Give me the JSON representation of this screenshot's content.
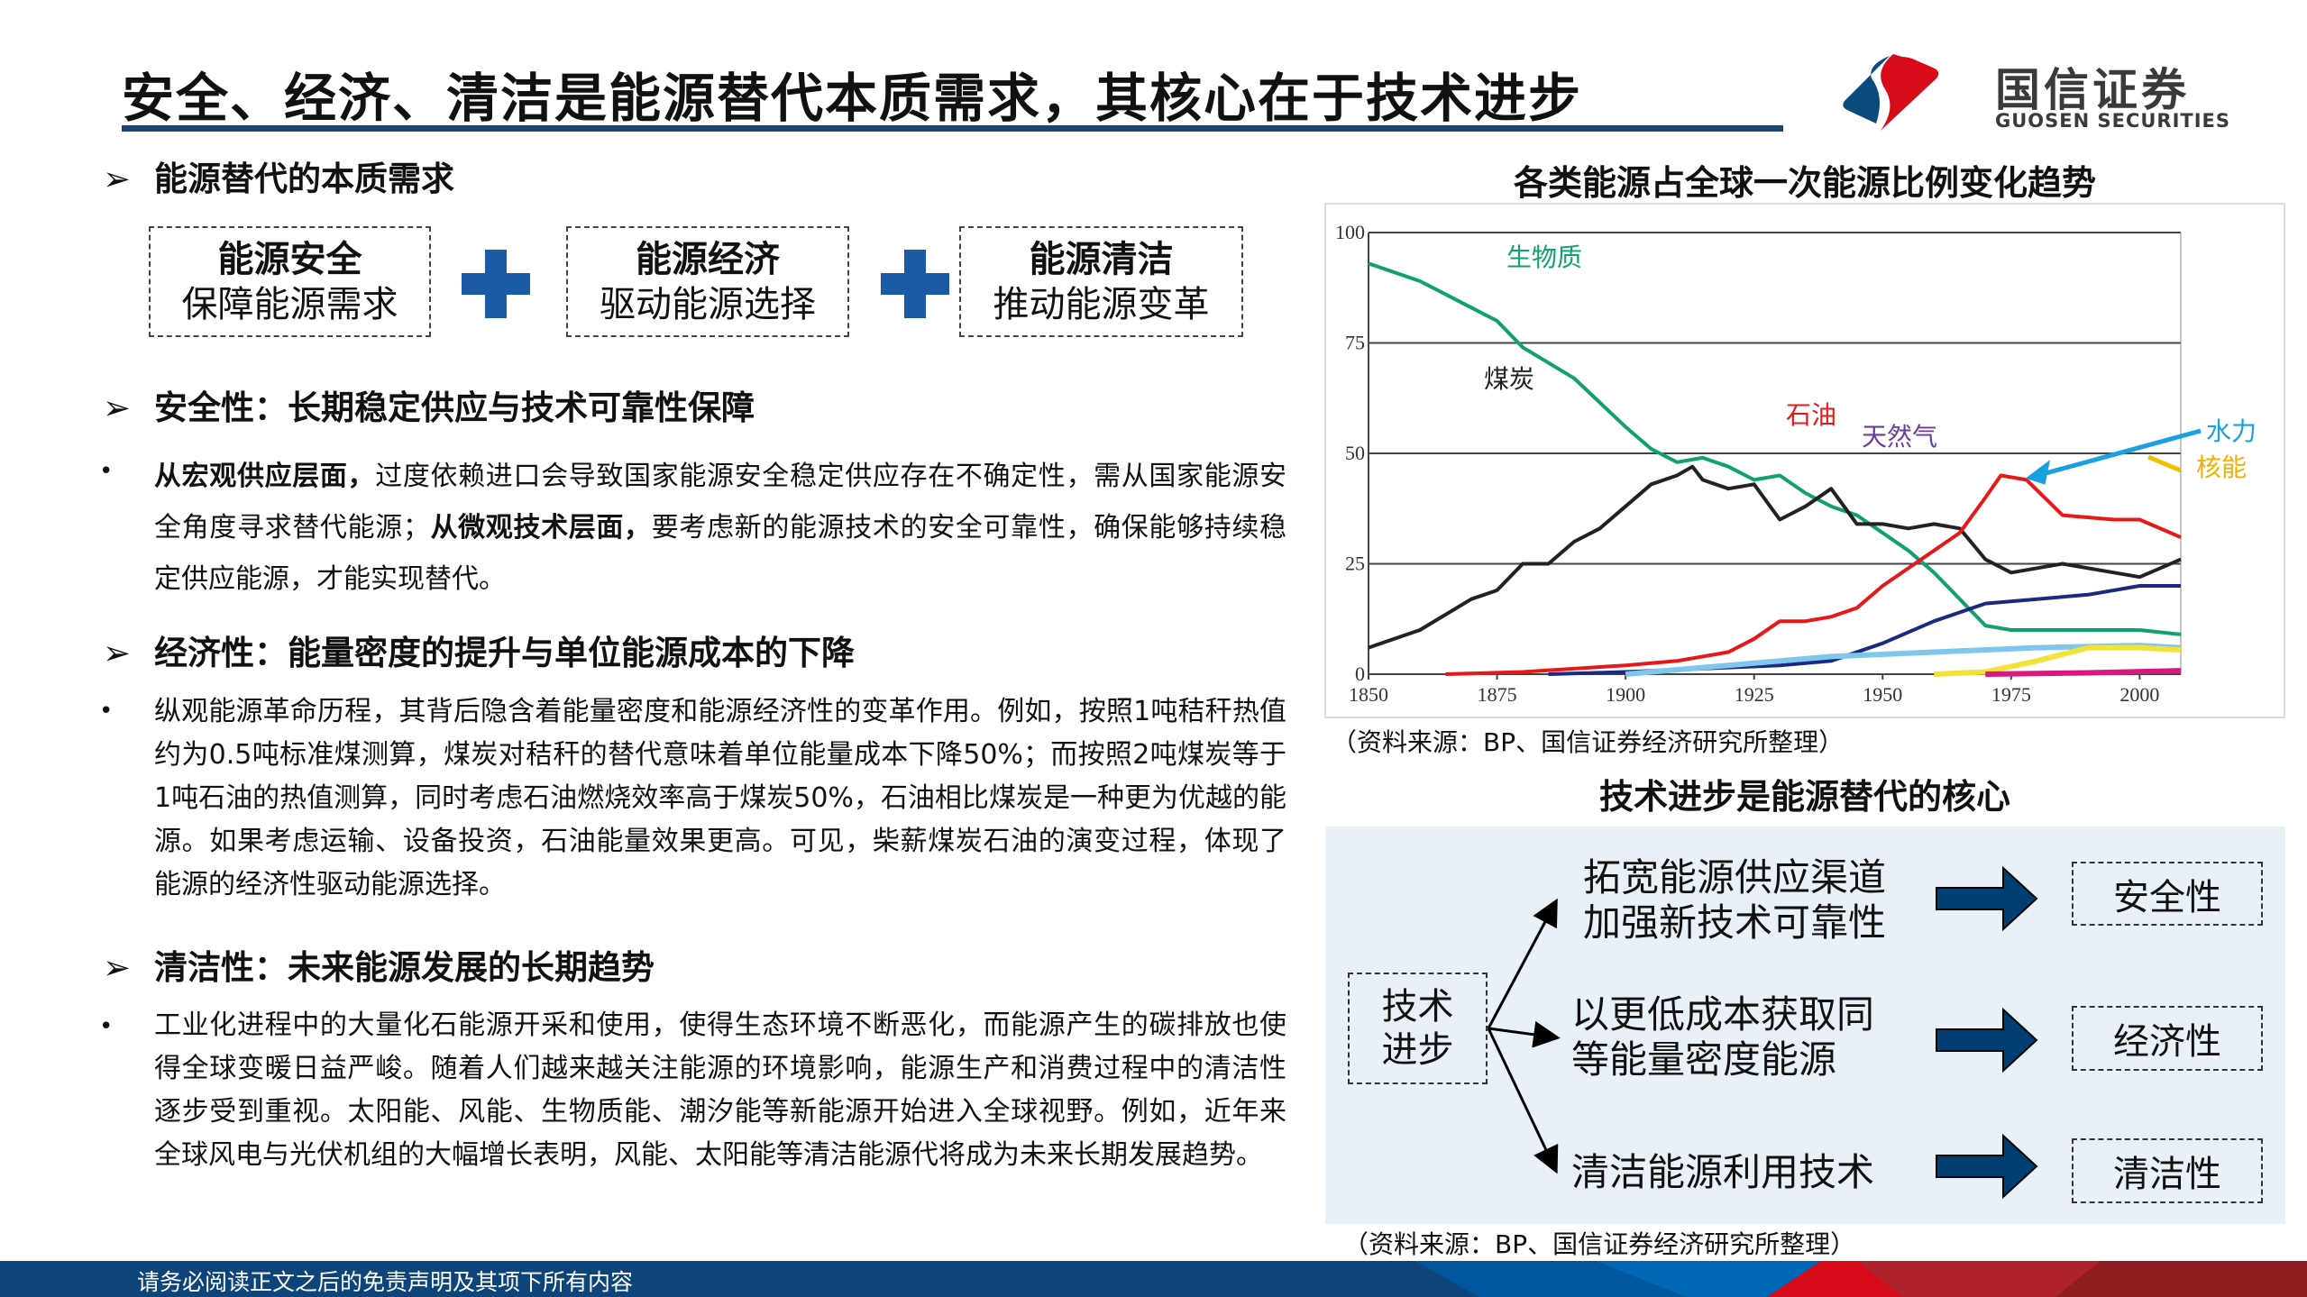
{
  "title": "安全、经济、清洁是能源替代本质需求，其核心在于技术进步",
  "logo": {
    "cn": "国信证券",
    "en": "GUOSEN SECURITIES",
    "colors": {
      "blue": "#0b4a7c",
      "red": "#d80c18"
    }
  },
  "left": {
    "section_heading": "能源替代的本质需求",
    "boxes": [
      {
        "title": "能源安全",
        "subtitle": "保障能源需求"
      },
      {
        "title": "能源经济",
        "subtitle": "驱动能源选择"
      },
      {
        "title": "能源清洁",
        "subtitle": "推动能源变革"
      }
    ],
    "security": {
      "heading": "安全性：长期稳定供应与技术可靠性保障",
      "bold1": "从宏观供应层面，",
      "text1": "过度依赖进口会导致国家能源安全稳定供应存在不确定性，需从国家能源安全角度寻求替代能源；",
      "bold2": "从微观技术层面，",
      "text2": "要考虑新的能源技术的安全可靠性，确保能够持续稳定供应能源，才能实现替代。"
    },
    "economy": {
      "heading": "经济性：能量密度的提升与单位能源成本的下降",
      "text": "纵观能源革命历程，其背后隐含着能量密度和能源经济性的变革作用。例如，按照1吨秸秆热值约为0.5吨标准煤测算，煤炭对秸秆的替代意味着单位能量成本下降50%；而按照2吨煤炭等于1吨石油的热值测算，同时考虑石油燃烧效率高于煤炭50%，石油相比煤炭是一种更为优越的能源。如果考虑运输、设备投资，石油能量效果更高。可见，柴薪煤炭石油的演变过程，体现了能源的经济性驱动能源选择。"
    },
    "clean": {
      "heading": "清洁性：未来能源发展的长期趋势",
      "text": "工业化进程中的大量化石能源开采和使用，使得生态环境不断恶化，而能源产生的碳排放也使得全球变暖日益严峻。随着人们越来越关注能源的环境影响，能源生产和消费过程中的清洁性逐步受到重视。太阳能、风能、生物质能、潮汐能等新能源开始进入全球视野。例如，近年来全球风电与光伏机组的大幅增长表明，风能、太阳能等清洁能源代将成为未来长期发展趋势。"
    }
  },
  "chart_title": "各类能源占全球一次能源比例变化趋势",
  "chart_source": "（资料来源：BP、国信证券经济研究所整理）",
  "chart_data": {
    "type": "line",
    "title": "各类能源占全球一次能源比例变化趋势",
    "xlim": [
      1850,
      2008
    ],
    "ylim": [
      0,
      100
    ],
    "xticks": [
      1850,
      1875,
      1900,
      1925,
      1950,
      1975,
      2000
    ],
    "yticks": [
      0,
      25,
      50,
      75,
      100
    ],
    "grid": "horizontal",
    "series": [
      {
        "name": "生物质",
        "color": "#11a070",
        "x": [
          1850,
          1860,
          1870,
          1875,
          1880,
          1890,
          1900,
          1905,
          1910,
          1915,
          1920,
          1925,
          1930,
          1935,
          1940,
          1945,
          1950,
          1955,
          1960,
          1965,
          1970,
          1975,
          1980,
          1990,
          2000,
          2008
        ],
        "y": [
          93,
          89,
          83,
          80,
          74,
          67,
          56,
          51,
          48,
          49,
          47,
          44,
          45,
          41,
          38,
          36,
          32,
          28,
          23,
          17,
          11,
          10,
          10,
          10,
          10,
          9
        ]
      },
      {
        "name": "煤炭",
        "color": "#222222",
        "x": [
          1850,
          1860,
          1870,
          1875,
          1880,
          1885,
          1890,
          1895,
          1900,
          1905,
          1910,
          1913,
          1915,
          1920,
          1925,
          1930,
          1935,
          1940,
          1945,
          1950,
          1955,
          1960,
          1965,
          1970,
          1975,
          1985,
          1995,
          2000,
          2008
        ],
        "y": [
          6,
          10,
          17,
          19,
          25,
          25,
          30,
          33,
          38,
          43,
          45,
          47,
          44,
          42,
          43,
          35,
          38,
          42,
          34,
          34,
          33,
          34,
          33,
          26,
          23,
          25,
          23,
          22,
          26
        ]
      },
      {
        "name": "石油",
        "color": "#e81818",
        "x": [
          1865,
          1880,
          1900,
          1910,
          1920,
          1925,
          1930,
          1935,
          1940,
          1945,
          1950,
          1955,
          1960,
          1965,
          1970,
          1973,
          1978,
          1985,
          1995,
          2000,
          2008
        ],
        "y": [
          0,
          0.5,
          2,
          3,
          5,
          8,
          12,
          12,
          13,
          15,
          20,
          24,
          28,
          32,
          40,
          45,
          44,
          36,
          35,
          35,
          31
        ]
      },
      {
        "name": "天然气",
        "color": "#1a2a80",
        "x": [
          1885,
          1900,
          1920,
          1930,
          1940,
          1950,
          1960,
          1970,
          1980,
          1990,
          2000,
          2008
        ],
        "y": [
          0,
          0.5,
          1.5,
          2,
          3,
          7,
          12,
          16,
          17,
          18,
          20,
          20
        ]
      },
      {
        "name": "水力",
        "color": "#7fc6ec",
        "x": [
          1900,
          1920,
          1940,
          1960,
          1980,
          2000,
          2008
        ],
        "y": [
          0,
          2,
          4,
          5,
          6,
          6.5,
          6
        ]
      },
      {
        "name": "核能",
        "color": "#f2e23a",
        "x": [
          1960,
          1970,
          1980,
          1990,
          2000,
          2008
        ],
        "y": [
          0,
          0.5,
          3,
          6,
          6,
          5.5
        ]
      },
      {
        "color": "#d8187a",
        "x": [
          1970,
          1990,
          2008
        ],
        "y": [
          0,
          0.3,
          0.8
        ]
      }
    ],
    "annotations": [
      "生物质",
      "煤炭",
      "石油",
      "天然气",
      "水力",
      "核能"
    ]
  },
  "diagram": {
    "title": "技术进步是能源替代的核心",
    "root_lines": [
      "技术",
      "进步"
    ],
    "items": [
      {
        "lines": [
          "拓宽能源供应渠道",
          "加强新技术可靠性"
        ],
        "result": "安全性"
      },
      {
        "lines": [
          "以更低成本获取同",
          "等能量密度能源"
        ],
        "result": "经济性"
      },
      {
        "lines": [
          "清洁能源利用技术"
        ],
        "result": "清洁性"
      }
    ],
    "arrow_color": "#003f72",
    "source": "（资料来源：BP、国信证券经济研究所整理）"
  },
  "footer": "请务必阅读正文之后的免责声明及其项下所有内容"
}
